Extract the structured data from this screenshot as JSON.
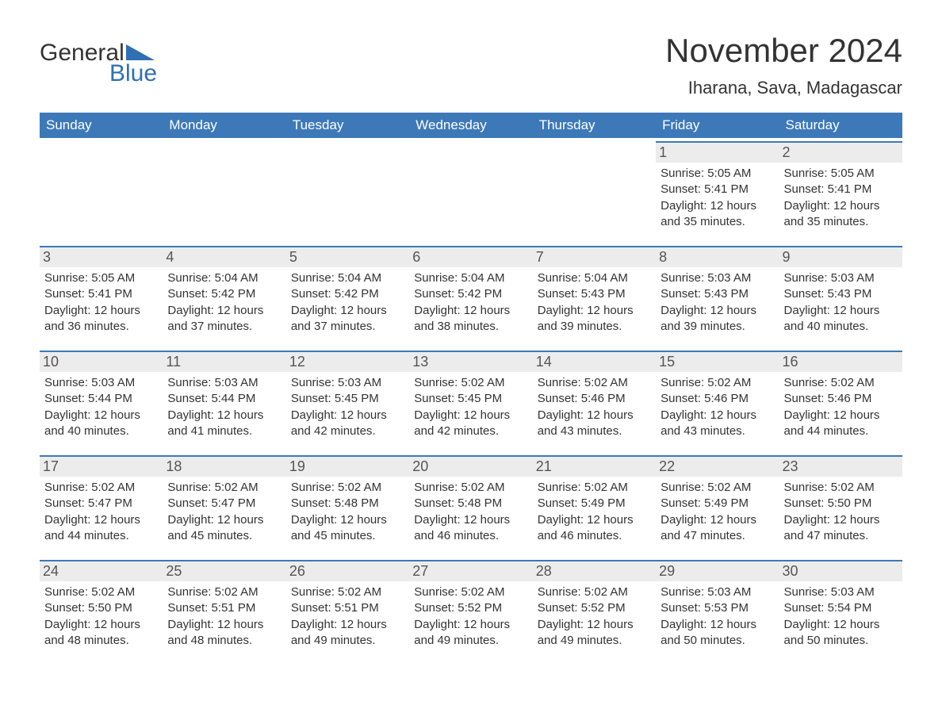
{
  "logo": {
    "text1": "General",
    "text2": "Blue"
  },
  "title": "November 2024",
  "location": "Iharana, Sava, Madagascar",
  "colors": {
    "header_bg": "#3d79b8",
    "header_text": "#ffffff",
    "cell_border": "#3d79b8",
    "daynum_bg": "#ececec",
    "text": "#333333",
    "logo_blue": "#2f6fb3",
    "background": "#ffffff"
  },
  "weekdays": [
    "Sunday",
    "Monday",
    "Tuesday",
    "Wednesday",
    "Thursday",
    "Friday",
    "Saturday"
  ],
  "weeks": [
    [
      null,
      null,
      null,
      null,
      null,
      {
        "n": "1",
        "sr": "Sunrise: 5:05 AM",
        "ss": "Sunset: 5:41 PM",
        "d1": "Daylight: 12 hours",
        "d2": "and 35 minutes."
      },
      {
        "n": "2",
        "sr": "Sunrise: 5:05 AM",
        "ss": "Sunset: 5:41 PM",
        "d1": "Daylight: 12 hours",
        "d2": "and 35 minutes."
      }
    ],
    [
      {
        "n": "3",
        "sr": "Sunrise: 5:05 AM",
        "ss": "Sunset: 5:41 PM",
        "d1": "Daylight: 12 hours",
        "d2": "and 36 minutes."
      },
      {
        "n": "4",
        "sr": "Sunrise: 5:04 AM",
        "ss": "Sunset: 5:42 PM",
        "d1": "Daylight: 12 hours",
        "d2": "and 37 minutes."
      },
      {
        "n": "5",
        "sr": "Sunrise: 5:04 AM",
        "ss": "Sunset: 5:42 PM",
        "d1": "Daylight: 12 hours",
        "d2": "and 37 minutes."
      },
      {
        "n": "6",
        "sr": "Sunrise: 5:04 AM",
        "ss": "Sunset: 5:42 PM",
        "d1": "Daylight: 12 hours",
        "d2": "and 38 minutes."
      },
      {
        "n": "7",
        "sr": "Sunrise: 5:04 AM",
        "ss": "Sunset: 5:43 PM",
        "d1": "Daylight: 12 hours",
        "d2": "and 39 minutes."
      },
      {
        "n": "8",
        "sr": "Sunrise: 5:03 AM",
        "ss": "Sunset: 5:43 PM",
        "d1": "Daylight: 12 hours",
        "d2": "and 39 minutes."
      },
      {
        "n": "9",
        "sr": "Sunrise: 5:03 AM",
        "ss": "Sunset: 5:43 PM",
        "d1": "Daylight: 12 hours",
        "d2": "and 40 minutes."
      }
    ],
    [
      {
        "n": "10",
        "sr": "Sunrise: 5:03 AM",
        "ss": "Sunset: 5:44 PM",
        "d1": "Daylight: 12 hours",
        "d2": "and 40 minutes."
      },
      {
        "n": "11",
        "sr": "Sunrise: 5:03 AM",
        "ss": "Sunset: 5:44 PM",
        "d1": "Daylight: 12 hours",
        "d2": "and 41 minutes."
      },
      {
        "n": "12",
        "sr": "Sunrise: 5:03 AM",
        "ss": "Sunset: 5:45 PM",
        "d1": "Daylight: 12 hours",
        "d2": "and 42 minutes."
      },
      {
        "n": "13",
        "sr": "Sunrise: 5:02 AM",
        "ss": "Sunset: 5:45 PM",
        "d1": "Daylight: 12 hours",
        "d2": "and 42 minutes."
      },
      {
        "n": "14",
        "sr": "Sunrise: 5:02 AM",
        "ss": "Sunset: 5:46 PM",
        "d1": "Daylight: 12 hours",
        "d2": "and 43 minutes."
      },
      {
        "n": "15",
        "sr": "Sunrise: 5:02 AM",
        "ss": "Sunset: 5:46 PM",
        "d1": "Daylight: 12 hours",
        "d2": "and 43 minutes."
      },
      {
        "n": "16",
        "sr": "Sunrise: 5:02 AM",
        "ss": "Sunset: 5:46 PM",
        "d1": "Daylight: 12 hours",
        "d2": "and 44 minutes."
      }
    ],
    [
      {
        "n": "17",
        "sr": "Sunrise: 5:02 AM",
        "ss": "Sunset: 5:47 PM",
        "d1": "Daylight: 12 hours",
        "d2": "and 44 minutes."
      },
      {
        "n": "18",
        "sr": "Sunrise: 5:02 AM",
        "ss": "Sunset: 5:47 PM",
        "d1": "Daylight: 12 hours",
        "d2": "and 45 minutes."
      },
      {
        "n": "19",
        "sr": "Sunrise: 5:02 AM",
        "ss": "Sunset: 5:48 PM",
        "d1": "Daylight: 12 hours",
        "d2": "and 45 minutes."
      },
      {
        "n": "20",
        "sr": "Sunrise: 5:02 AM",
        "ss": "Sunset: 5:48 PM",
        "d1": "Daylight: 12 hours",
        "d2": "and 46 minutes."
      },
      {
        "n": "21",
        "sr": "Sunrise: 5:02 AM",
        "ss": "Sunset: 5:49 PM",
        "d1": "Daylight: 12 hours",
        "d2": "and 46 minutes."
      },
      {
        "n": "22",
        "sr": "Sunrise: 5:02 AM",
        "ss": "Sunset: 5:49 PM",
        "d1": "Daylight: 12 hours",
        "d2": "and 47 minutes."
      },
      {
        "n": "23",
        "sr": "Sunrise: 5:02 AM",
        "ss": "Sunset: 5:50 PM",
        "d1": "Daylight: 12 hours",
        "d2": "and 47 minutes."
      }
    ],
    [
      {
        "n": "24",
        "sr": "Sunrise: 5:02 AM",
        "ss": "Sunset: 5:50 PM",
        "d1": "Daylight: 12 hours",
        "d2": "and 48 minutes."
      },
      {
        "n": "25",
        "sr": "Sunrise: 5:02 AM",
        "ss": "Sunset: 5:51 PM",
        "d1": "Daylight: 12 hours",
        "d2": "and 48 minutes."
      },
      {
        "n": "26",
        "sr": "Sunrise: 5:02 AM",
        "ss": "Sunset: 5:51 PM",
        "d1": "Daylight: 12 hours",
        "d2": "and 49 minutes."
      },
      {
        "n": "27",
        "sr": "Sunrise: 5:02 AM",
        "ss": "Sunset: 5:52 PM",
        "d1": "Daylight: 12 hours",
        "d2": "and 49 minutes."
      },
      {
        "n": "28",
        "sr": "Sunrise: 5:02 AM",
        "ss": "Sunset: 5:52 PM",
        "d1": "Daylight: 12 hours",
        "d2": "and 49 minutes."
      },
      {
        "n": "29",
        "sr": "Sunrise: 5:03 AM",
        "ss": "Sunset: 5:53 PM",
        "d1": "Daylight: 12 hours",
        "d2": "and 50 minutes."
      },
      {
        "n": "30",
        "sr": "Sunrise: 5:03 AM",
        "ss": "Sunset: 5:54 PM",
        "d1": "Daylight: 12 hours",
        "d2": "and 50 minutes."
      }
    ]
  ]
}
